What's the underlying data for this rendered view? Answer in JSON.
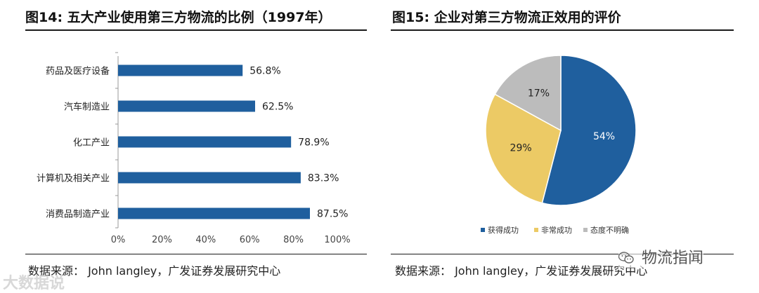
{
  "left": {
    "title": "图14: 五大产业使用第三方物流的比例（1997年）",
    "source": "数据来源： John langley，广发证券发展研究中心"
  },
  "right": {
    "title": "图15: 企业对第三方物流正效用的评价",
    "source": "数据来源： John langley，广发证券发展研究中心"
  },
  "watermarks": {
    "left_text": "大数据说",
    "right_text": "物流指闻"
  },
  "chart_data": [
    {
      "type": "bar",
      "orientation": "horizontal",
      "title": "图14: 五大产业使用第三方物流的比例（1997年）",
      "categories": [
        "药品及医疗设备",
        "汽车制造业",
        "化工产业",
        "计算机及相关产业",
        "消费品制造产业"
      ],
      "values": [
        56.8,
        62.5,
        78.9,
        83.3,
        87.5
      ],
      "value_labels": [
        "56.8%",
        "62.5%",
        "78.9%",
        "83.3%",
        "87.5%"
      ],
      "xlim": [
        0,
        100
      ],
      "xticks": [
        "0%",
        "20%",
        "40%",
        "60%",
        "80%",
        "100%"
      ],
      "grid": false,
      "color": "#1f5f9e"
    },
    {
      "type": "pie",
      "title": "图15: 企业对第三方物流正效用的评价",
      "labels": [
        "获得成功",
        "非常成功",
        "态度不明确"
      ],
      "values": [
        54,
        29,
        17
      ],
      "value_labels": [
        "54%",
        "29%",
        "17%"
      ],
      "colors": [
        "#1f5f9e",
        "#ecca65",
        "#bcbcbc"
      ],
      "legend": "bottom"
    }
  ]
}
